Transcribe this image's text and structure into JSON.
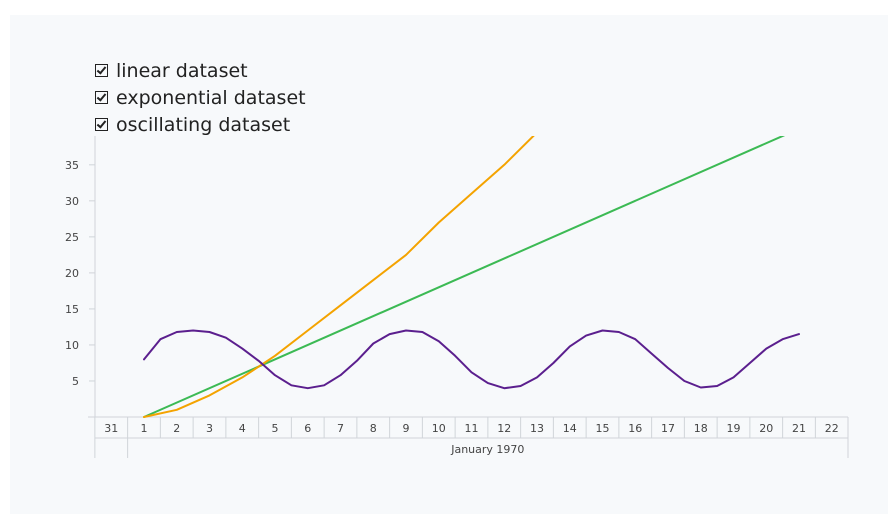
{
  "legend": [
    {
      "label": "linear dataset",
      "color": "#3cba54"
    },
    {
      "label": "exponential dataset",
      "color": "#f4a300"
    },
    {
      "label": "oscillating dataset",
      "color": "#5b1f8e"
    }
  ],
  "chart_data": {
    "type": "line",
    "title": "",
    "xlabel": "",
    "ylabel": "",
    "y_ticks": [
      5,
      10,
      15,
      20,
      25,
      30,
      35
    ],
    "ylim": [
      0,
      39
    ],
    "x_ticks": [
      "31",
      "1",
      "2",
      "3",
      "4",
      "5",
      "6",
      "7",
      "8",
      "9",
      "10",
      "11",
      "12",
      "13",
      "14",
      "15",
      "16",
      "17",
      "18",
      "19",
      "20",
      "21",
      "22"
    ],
    "month_label": "January 1970",
    "grid": false,
    "legend_position": "top-left",
    "series": [
      {
        "name": "linear dataset",
        "color": "#3cba54",
        "x": [
          1,
          21
        ],
        "y": [
          0,
          40
        ]
      },
      {
        "name": "exponential dataset",
        "color": "#f4a300",
        "x": [
          1,
          2,
          3,
          4,
          5,
          6,
          7,
          8,
          9,
          10,
          11,
          12,
          13
        ],
        "y": [
          0,
          1,
          3,
          5.5,
          8.5,
          12,
          15.5,
          19,
          22.5,
          27,
          31,
          35,
          39.5
        ]
      },
      {
        "name": "oscillating dataset",
        "color": "#5b1f8e",
        "x": [
          1,
          1.5,
          2,
          2.5,
          3,
          3.5,
          4,
          4.5,
          5,
          5.5,
          6,
          6.5,
          7,
          7.5,
          8,
          8.5,
          9,
          9.5,
          10,
          10.5,
          11,
          11.5,
          12,
          12.5,
          13,
          13.5,
          14,
          14.5,
          15,
          15.5,
          16,
          16.5,
          17,
          17.5,
          18,
          18.5,
          19,
          19.5,
          20,
          20.5,
          21
        ],
        "y": [
          8,
          10.8,
          11.8,
          12,
          11.8,
          11,
          9.5,
          7.8,
          5.8,
          4.4,
          4,
          4.4,
          5.8,
          7.8,
          10.2,
          11.5,
          12,
          11.8,
          10.5,
          8.5,
          6.2,
          4.7,
          4,
          4.3,
          5.5,
          7.5,
          9.8,
          11.3,
          12,
          11.8,
          10.8,
          8.8,
          6.8,
          5,
          4.1,
          4.3,
          5.5,
          7.5,
          9.5,
          10.8,
          11.5
        ]
      }
    ]
  }
}
